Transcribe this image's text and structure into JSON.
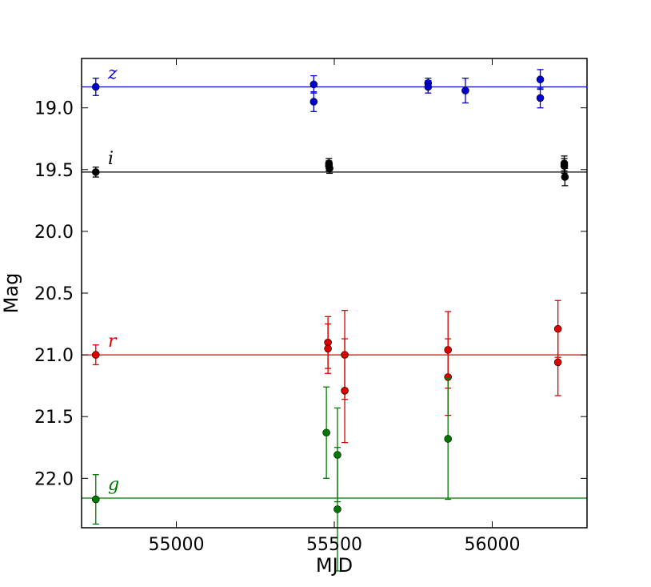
{
  "chart_data": {
    "type": "scatter",
    "xlabel": "MJD",
    "ylabel": "Mag",
    "xlim": [
      54700,
      56300
    ],
    "ylim": [
      22.4,
      18.6
    ],
    "y_inverted": true,
    "grid": false,
    "x_ticks": [
      55000,
      55500,
      56000
    ],
    "x_tick_labels": [
      "55000",
      "55500",
      "56000"
    ],
    "y_ticks": [
      19.0,
      19.5,
      20.0,
      20.5,
      21.0,
      21.5,
      22.0
    ],
    "y_tick_labels": [
      "19.0",
      "19.5",
      "20.0",
      "20.5",
      "21.0",
      "21.5",
      "22.0"
    ],
    "series": [
      {
        "name": "z",
        "color": "#0000cc",
        "mean": 18.83,
        "points": [
          {
            "x": 54745,
            "y": 18.83,
            "err": 0.07
          },
          {
            "x": 55435,
            "y": 18.81,
            "err": 0.07
          },
          {
            "x": 55435,
            "y": 18.95,
            "err": 0.08
          },
          {
            "x": 55797,
            "y": 18.8,
            "err": 0.04
          },
          {
            "x": 55797,
            "y": 18.83,
            "err": 0.05
          },
          {
            "x": 55915,
            "y": 18.86,
            "err": 0.1
          },
          {
            "x": 56152,
            "y": 18.77,
            "err": 0.08
          },
          {
            "x": 56152,
            "y": 18.92,
            "err": 0.08
          }
        ]
      },
      {
        "name": "i",
        "color": "#000000",
        "mean": 19.52,
        "points": [
          {
            "x": 54745,
            "y": 19.52,
            "err": 0.04
          },
          {
            "x": 55483,
            "y": 19.45,
            "err": 0.04
          },
          {
            "x": 55483,
            "y": 19.47,
            "err": 0.04
          },
          {
            "x": 55485,
            "y": 19.49,
            "err": 0.04
          },
          {
            "x": 56228,
            "y": 19.45,
            "err": 0.06
          },
          {
            "x": 56228,
            "y": 19.47,
            "err": 0.06
          },
          {
            "x": 56230,
            "y": 19.56,
            "err": 0.07
          }
        ]
      },
      {
        "name": "r",
        "color": "#dd0000",
        "mean": 21.0,
        "points": [
          {
            "x": 54745,
            "y": 21.0,
            "err": 0.08
          },
          {
            "x": 55480,
            "y": 20.9,
            "err": 0.21
          },
          {
            "x": 55480,
            "y": 20.95,
            "err": 0.2
          },
          {
            "x": 55533,
            "y": 21.0,
            "err": 0.36
          },
          {
            "x": 55533,
            "y": 21.29,
            "err": 0.42
          },
          {
            "x": 55860,
            "y": 20.96,
            "err": 0.31
          },
          {
            "x": 55860,
            "y": 21.18,
            "err": 0.31
          },
          {
            "x": 56208,
            "y": 20.79,
            "err": 0.23
          },
          {
            "x": 56208,
            "y": 21.06,
            "err": 0.27
          }
        ]
      },
      {
        "name": "g",
        "color": "#007700",
        "mean": 22.16,
        "points": [
          {
            "x": 54745,
            "y": 22.17,
            "err": 0.2
          },
          {
            "x": 55475,
            "y": 21.63,
            "err": 0.37
          },
          {
            "x": 55510,
            "y": 21.81,
            "err": 0.38
          },
          {
            "x": 55510,
            "y": 22.25,
            "err": 0.5
          },
          {
            "x": 55860,
            "y": 21.68,
            "err": 0.49
          }
        ]
      }
    ]
  }
}
